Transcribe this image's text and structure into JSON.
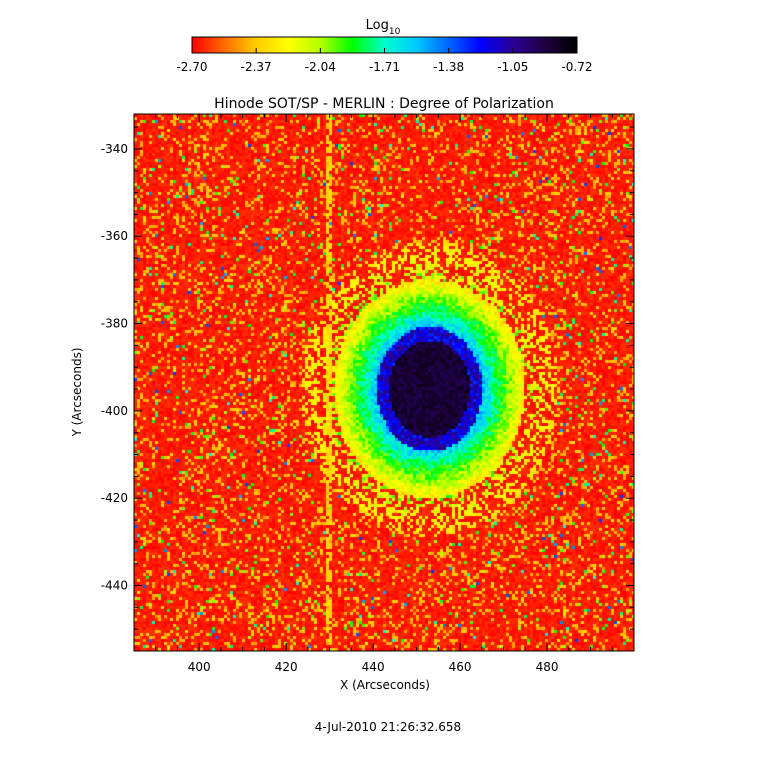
{
  "chart_data": {
    "type": "heatmap",
    "title": "Hinode SOT/SP - MERLIN : Degree of Polarization",
    "xlabel": "X (Arcseconds)",
    "ylabel": "Y (Arcseconds)",
    "timestamp": "4-Jul-2010 21:26:32.658",
    "xlim": [
      385,
      500
    ],
    "ylim": [
      -455,
      -332
    ],
    "xticks": [
      400,
      420,
      440,
      460,
      480
    ],
    "yticks": [
      -340,
      -360,
      -380,
      -400,
      -420,
      -440
    ],
    "colorbar": {
      "label_base": "Log",
      "label_sub": "10",
      "range": [
        -2.7,
        -0.72
      ],
      "ticks": [
        "-2.70",
        "-2.37",
        "-2.04",
        "-1.71",
        "-1.38",
        "-1.05",
        "-0.72"
      ],
      "colormap": [
        "#ff0000",
        "#ff6a00",
        "#ffcc00",
        "#ffff00",
        "#b4ff00",
        "#00ff00",
        "#00ffcc",
        "#00c8ff",
        "#0064ff",
        "#0000ff",
        "#2a0096",
        "#1e0040",
        "#000000"
      ]
    },
    "features": {
      "spot_center": [
        453,
        -395
      ],
      "spot_umbra_radius": [
        11,
        13
      ],
      "spot_penumbra_radius": [
        22,
        25
      ],
      "bright_column_x": 430,
      "background_log_value": -2.7
    }
  }
}
